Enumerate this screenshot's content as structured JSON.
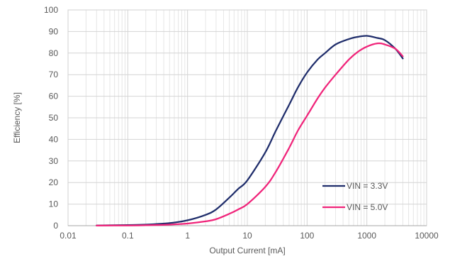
{
  "chart_data": {
    "type": "line",
    "xlabel": "Output Current [mA]",
    "ylabel": "Efficiency [%]",
    "xscale": "log",
    "xlim": [
      0.01,
      10000
    ],
    "ylim": [
      0,
      100
    ],
    "grid": true,
    "legend_position": "bottom-right",
    "x_ticks": [
      {
        "value": 0.01,
        "label": "0.01"
      },
      {
        "value": 0.1,
        "label": "0.1"
      },
      {
        "value": 1,
        "label": "1"
      },
      {
        "value": 10,
        "label": "10"
      },
      {
        "value": 100,
        "label": "100"
      },
      {
        "value": 1000,
        "label": "1000"
      },
      {
        "value": 10000,
        "label": "10000"
      }
    ],
    "y_ticks": [
      {
        "value": 0,
        "label": "0"
      },
      {
        "value": 10,
        "label": "10"
      },
      {
        "value": 20,
        "label": "20"
      },
      {
        "value": 30,
        "label": "30"
      },
      {
        "value": 40,
        "label": "40"
      },
      {
        "value": 50,
        "label": "50"
      },
      {
        "value": 60,
        "label": "60"
      },
      {
        "value": 70,
        "label": "70"
      },
      {
        "value": 80,
        "label": "80"
      },
      {
        "value": 90,
        "label": "90"
      },
      {
        "value": 100,
        "label": "100"
      }
    ],
    "series": [
      {
        "name": "VIN = 3.3V",
        "color": "#1f2d6b",
        "points": [
          [
            0.03,
            0.1
          ],
          [
            0.1,
            0.3
          ],
          [
            0.2,
            0.5
          ],
          [
            0.5,
            1.2
          ],
          [
            1,
            2.5
          ],
          [
            2,
            5
          ],
          [
            3,
            7.5
          ],
          [
            5,
            13
          ],
          [
            7,
            17
          ],
          [
            10,
            21
          ],
          [
            20,
            34
          ],
          [
            30,
            44
          ],
          [
            50,
            56
          ],
          [
            70,
            64
          ],
          [
            100,
            71
          ],
          [
            150,
            77
          ],
          [
            200,
            80
          ],
          [
            300,
            84
          ],
          [
            500,
            86.5
          ],
          [
            700,
            87.5
          ],
          [
            1000,
            88
          ],
          [
            1500,
            87
          ],
          [
            2000,
            86
          ],
          [
            3000,
            82
          ],
          [
            4000,
            77.5
          ]
        ]
      },
      {
        "name": "VIN = 5.0V",
        "color": "#f0247a",
        "points": [
          [
            0.03,
            0.05
          ],
          [
            0.1,
            0.1
          ],
          [
            0.2,
            0.2
          ],
          [
            0.5,
            0.5
          ],
          [
            1,
            1
          ],
          [
            2,
            2
          ],
          [
            3,
            3
          ],
          [
            5,
            5.5
          ],
          [
            7,
            7.5
          ],
          [
            10,
            10
          ],
          [
            20,
            18
          ],
          [
            30,
            25
          ],
          [
            50,
            36
          ],
          [
            70,
            44
          ],
          [
            100,
            51
          ],
          [
            150,
            59
          ],
          [
            200,
            64
          ],
          [
            300,
            70
          ],
          [
            500,
            77
          ],
          [
            700,
            80.5
          ],
          [
            1000,
            83
          ],
          [
            1500,
            84.5
          ],
          [
            2000,
            84
          ],
          [
            3000,
            82
          ],
          [
            4000,
            78.5
          ]
        ]
      }
    ]
  }
}
